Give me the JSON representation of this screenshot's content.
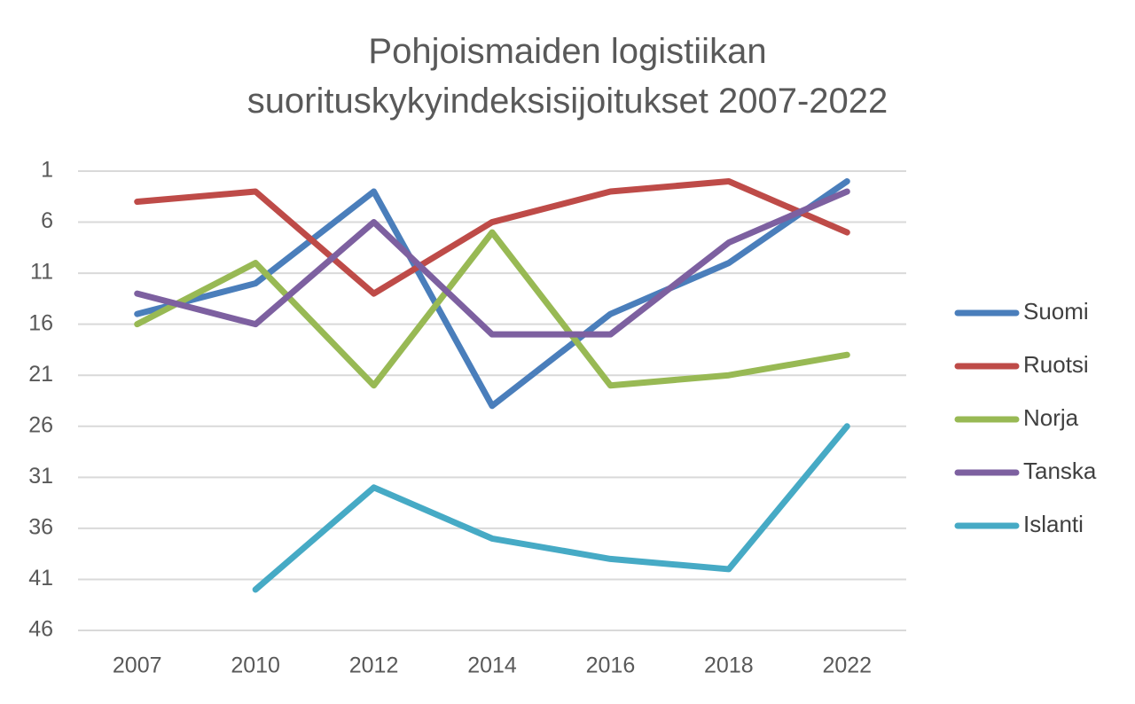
{
  "chart_data": {
    "type": "line",
    "title": "Pohjoismaiden logistiikan suorituskykyindeksisijoitukset 2007-2022",
    "categories": [
      "2007",
      "2010",
      "2012",
      "2014",
      "2016",
      "2018",
      "2022"
    ],
    "series": [
      {
        "name": "Suomi",
        "color": "#4a7ebb",
        "values": [
          15,
          12,
          3,
          24,
          15,
          10,
          2
        ]
      },
      {
        "name": "Ruotsi",
        "color": "#be4b48",
        "values": [
          4,
          3,
          13,
          6,
          3,
          2,
          7
        ]
      },
      {
        "name": "Norja",
        "color": "#98b954",
        "values": [
          16,
          10,
          22,
          7,
          22,
          21,
          19
        ]
      },
      {
        "name": "Tanska",
        "color": "#7d60a0",
        "values": [
          13,
          16,
          6,
          17,
          17,
          8,
          3
        ]
      },
      {
        "name": "Islanti",
        "color": "#46aac5",
        "values": [
          null,
          42,
          32,
          37,
          39,
          40,
          26
        ]
      }
    ],
    "ylim": [
      1,
      46
    ],
    "yticks": [
      1,
      6,
      11,
      16,
      21,
      26,
      31,
      36,
      41,
      46
    ],
    "y_inverted": true,
    "grid": true,
    "legend": "right"
  }
}
